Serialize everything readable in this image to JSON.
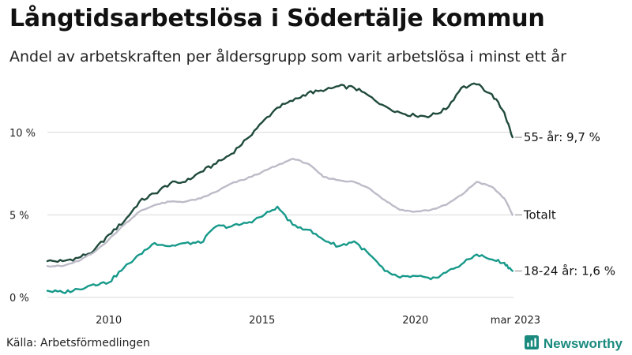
{
  "header": {
    "title": "Långtidsarbetslösa i Södertälje kommun",
    "subtitle": "Andel av arbetskraften per åldersgrupp som varit arbetslösa i minst ett år"
  },
  "footer": {
    "source": "Källa: Arbetsförmedlingen",
    "brand": "Newsworthy"
  },
  "colors": {
    "older": "#1f4a3c",
    "total": "#bdbbc8",
    "young": "#17998a",
    "grid": "#d9d9d9",
    "brand": "#1a8a7e"
  },
  "chart_data": {
    "type": "line",
    "title": "Långtidsarbetslösa i Södertälje kommun",
    "subtitle": "Andel av arbetskraften per åldersgrupp som varit arbetslösa i minst ett år",
    "xlim": [
      2008.0,
      2023.2
    ],
    "ylim": [
      0,
      13
    ],
    "y_ticks": [
      0,
      5,
      10
    ],
    "y_tick_labels": [
      "0 %",
      "5 %",
      "10 %"
    ],
    "x_ticks": [
      2010,
      2015,
      2020,
      2023.17
    ],
    "x_tick_labels": [
      "2010",
      "2015",
      "2020",
      "mar 2023"
    ],
    "grid": "horizontal",
    "legend": "end-labels",
    "series": [
      {
        "name": "55- år",
        "end_label": "55- år: 9,7 %",
        "color_key": "older",
        "x": [
          2008.0,
          2008.5,
          2009.0,
          2009.5,
          2010.0,
          2010.5,
          2011.0,
          2011.5,
          2012.0,
          2012.5,
          2013.0,
          2013.5,
          2014.0,
          2014.5,
          2015.0,
          2015.5,
          2016.0,
          2016.5,
          2017.0,
          2017.5,
          2018.0,
          2018.5,
          2019.0,
          2019.5,
          2020.0,
          2020.5,
          2021.0,
          2021.5,
          2022.0,
          2022.5,
          2022.9,
          2023.17
        ],
        "y": [
          2.2,
          2.2,
          2.4,
          2.8,
          3.8,
          4.6,
          5.8,
          6.3,
          6.9,
          7.0,
          7.6,
          8.1,
          8.7,
          9.6,
          10.6,
          11.5,
          11.9,
          12.4,
          12.5,
          12.8,
          12.7,
          12.2,
          11.6,
          11.2,
          11.0,
          11.0,
          11.4,
          12.7,
          12.9,
          12.3,
          11.2,
          9.7
        ]
      },
      {
        "name": "Totalt",
        "end_label": "Totalt",
        "color_key": "total",
        "x": [
          2008.0,
          2008.5,
          2009.0,
          2009.5,
          2010.0,
          2010.5,
          2011.0,
          2011.5,
          2012.0,
          2012.5,
          2013.0,
          2013.5,
          2014.0,
          2014.5,
          2015.0,
          2015.5,
          2016.0,
          2016.5,
          2017.0,
          2017.5,
          2018.0,
          2018.5,
          2019.0,
          2019.5,
          2020.0,
          2020.5,
          2021.0,
          2021.5,
          2022.0,
          2022.5,
          2022.9,
          2023.17
        ],
        "y": [
          1.9,
          1.9,
          2.2,
          2.7,
          3.5,
          4.4,
          5.2,
          5.6,
          5.8,
          5.8,
          6.0,
          6.4,
          6.9,
          7.2,
          7.6,
          8.0,
          8.4,
          8.1,
          7.3,
          7.1,
          7.0,
          6.6,
          5.9,
          5.3,
          5.2,
          5.3,
          5.6,
          6.2,
          7.0,
          6.7,
          6.0,
          5.0
        ]
      },
      {
        "name": "18-24 år",
        "end_label": "18-24 år: 1,6 %",
        "color_key": "young",
        "x": [
          2008.0,
          2008.5,
          2009.0,
          2009.5,
          2010.0,
          2010.5,
          2011.0,
          2011.5,
          2012.0,
          2012.5,
          2013.0,
          2013.5,
          2014.0,
          2014.5,
          2015.0,
          2015.5,
          2016.0,
          2016.5,
          2017.0,
          2017.5,
          2018.0,
          2018.5,
          2019.0,
          2019.5,
          2020.0,
          2020.5,
          2021.0,
          2021.5,
          2022.0,
          2022.5,
          2022.9,
          2023.17
        ],
        "y": [
          0.4,
          0.3,
          0.5,
          0.8,
          0.9,
          1.8,
          2.6,
          3.3,
          3.1,
          3.3,
          3.3,
          4.3,
          4.3,
          4.5,
          4.9,
          5.5,
          4.4,
          4.1,
          3.5,
          3.1,
          3.4,
          2.6,
          1.6,
          1.2,
          1.3,
          1.1,
          1.5,
          2.0,
          2.6,
          2.3,
          2.1,
          1.6
        ]
      }
    ]
  }
}
